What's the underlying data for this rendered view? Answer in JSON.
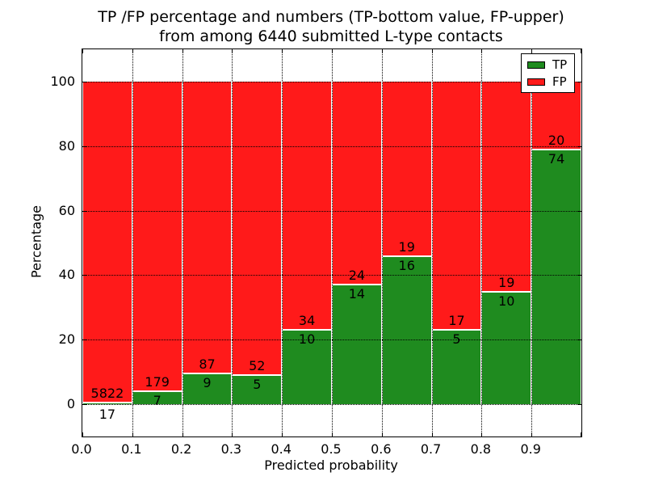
{
  "title": {
    "line1": "TP /FP percentage and numbers (TP-bottom value, FP-upper)",
    "line2": "from among 6440 submitted L-type contacts"
  },
  "chart_data": {
    "type": "bar",
    "stacked": true,
    "normalized_to_percent": true,
    "title": "TP /FP percentage and numbers (TP-bottom value, FP-upper)\nfrom among 6440 submitted L-type contacts",
    "xlabel": "Predicted probability",
    "ylabel": "Percentage",
    "total_contacts": 6440,
    "categories": [
      "0.0-0.1",
      "0.1-0.2",
      "0.2-0.3",
      "0.3-0.4",
      "0.4-0.5",
      "0.5-0.6",
      "0.6-0.7",
      "0.7-0.8",
      "0.8-0.9",
      "0.9-1.0"
    ],
    "series": [
      {
        "name": "TP",
        "color": "#1f8b1f",
        "values": [
          17,
          7,
          9,
          5,
          10,
          14,
          16,
          5,
          10,
          74
        ]
      },
      {
        "name": "FP",
        "color": "#ff1a1a",
        "values": [
          5822,
          179,
          87,
          52,
          34,
          24,
          19,
          17,
          19,
          20
        ]
      }
    ],
    "x_ticks": [
      "0.0",
      "0.1",
      "0.2",
      "0.3",
      "0.4",
      "0.5",
      "0.6",
      "0.7",
      "0.8",
      "0.9"
    ],
    "y_ticks": [
      0,
      20,
      40,
      60,
      80,
      100
    ],
    "xlim": [
      0.0,
      1.0
    ],
    "ylim": [
      -10,
      110
    ],
    "grid": "dotted both axes",
    "legend": {
      "position": "upper right",
      "entries": [
        {
          "label": "TP",
          "color": "#1f8b1f"
        },
        {
          "label": "FP",
          "color": "#ff1a1a"
        }
      ]
    }
  }
}
